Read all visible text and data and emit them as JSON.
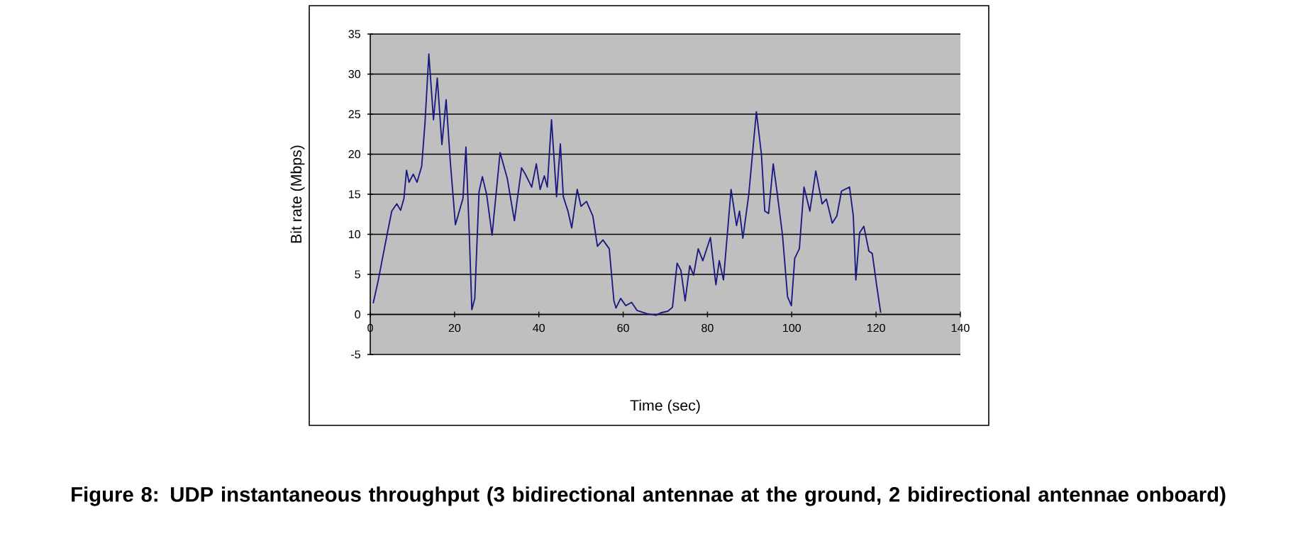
{
  "chart_data": {
    "type": "line",
    "title": "Figure 8:  UDP instantaneous throughput (3 bidirectional antennae at the ground, 2 bidirectional antennae onboard)",
    "xlabel": "Time (sec)",
    "ylabel": "Bit rate (Mbps)",
    "xlim": [
      0,
      140
    ],
    "xticks": [
      0,
      20,
      40,
      60,
      80,
      100,
      120,
      140
    ],
    "ylim": [
      -5,
      35
    ],
    "yticks": [
      -5,
      0,
      5,
      10,
      15,
      20,
      25,
      30,
      35
    ],
    "grid": "y",
    "marker": "none",
    "line_style": "solid",
    "series": [
      {
        "color": "#1a1a80",
        "x": [
          0.7,
          1.8,
          2.9,
          4,
          5.1,
          6.3,
          7.2,
          8,
          8.6,
          9.2,
          10.2,
          11.1,
          12.2,
          13,
          13.9,
          15,
          15.9,
          17,
          18,
          19,
          20.2,
          22,
          22.7,
          23.5,
          24.1,
          24.8,
          25.8,
          26.6,
          27.6,
          28.9,
          30.8,
          32.5,
          34.2,
          35.9,
          36.7,
          38.3,
          39.4,
          40.3,
          41.3,
          42,
          43,
          44.2,
          45.1,
          45.8,
          46.9,
          47.8,
          49.1,
          50,
          51.3,
          52.8,
          53.9,
          55.2,
          56.7,
          57.8,
          58.3,
          59.4,
          60.6,
          62,
          63.3,
          65.6,
          67.8,
          68.9,
          70.6,
          71.7,
          72.8,
          73.7,
          74.7,
          75.8,
          76.7,
          77.8,
          78.9,
          80.7,
          82,
          82.8,
          83.8,
          85.6,
          86.9,
          87.6,
          88.4,
          89.8,
          91.6,
          92.8,
          93.6,
          94.5,
          95.6,
          96.5,
          97.8,
          99,
          99.9,
          100.7,
          101.8,
          102.9,
          104.3,
          105.7,
          107.2,
          108.2,
          109.6,
          110.7,
          111.8,
          113.7,
          114.6,
          115.2,
          116.1,
          117.1,
          118.3,
          119.1,
          120.2,
          121.1
        ],
        "values": [
          1.4,
          4,
          7,
          10,
          12.9,
          13.8,
          13,
          14.5,
          18,
          16.5,
          17.5,
          16.5,
          18.5,
          24,
          32.5,
          24.3,
          29.5,
          21.2,
          26.8,
          19,
          11.2,
          14.5,
          20.9,
          10,
          0.6,
          2,
          15.3,
          17.2,
          15,
          9.9,
          20.2,
          17,
          11.7,
          18.3,
          17.6,
          15.9,
          18.8,
          15.6,
          17.3,
          15.9,
          24.3,
          14.7,
          21.3,
          14.7,
          12.9,
          10.8,
          15.6,
          13.5,
          14.1,
          12.3,
          8.5,
          9.3,
          8.2,
          1.7,
          0.8,
          2,
          1.1,
          1.5,
          0.5,
          0.1,
          -0.1,
          0.2,
          0.4,
          0.9,
          6.4,
          5.5,
          1.7,
          6.1,
          4.9,
          8.2,
          6.7,
          9.6,
          3.7,
          6.7,
          4.3,
          15.6,
          11.1,
          12.9,
          9.5,
          15,
          25.3,
          20,
          12.9,
          12.6,
          18.8,
          15.3,
          9.9,
          2.2,
          1.1,
          7,
          8.2,
          15.9,
          12.9,
          17.9,
          13.8,
          14.4,
          11.4,
          12.3,
          15.4,
          15.9,
          12.3,
          4.3,
          10.2,
          11,
          7.9,
          7.6,
          3.4,
          0.2
        ]
      }
    ]
  }
}
